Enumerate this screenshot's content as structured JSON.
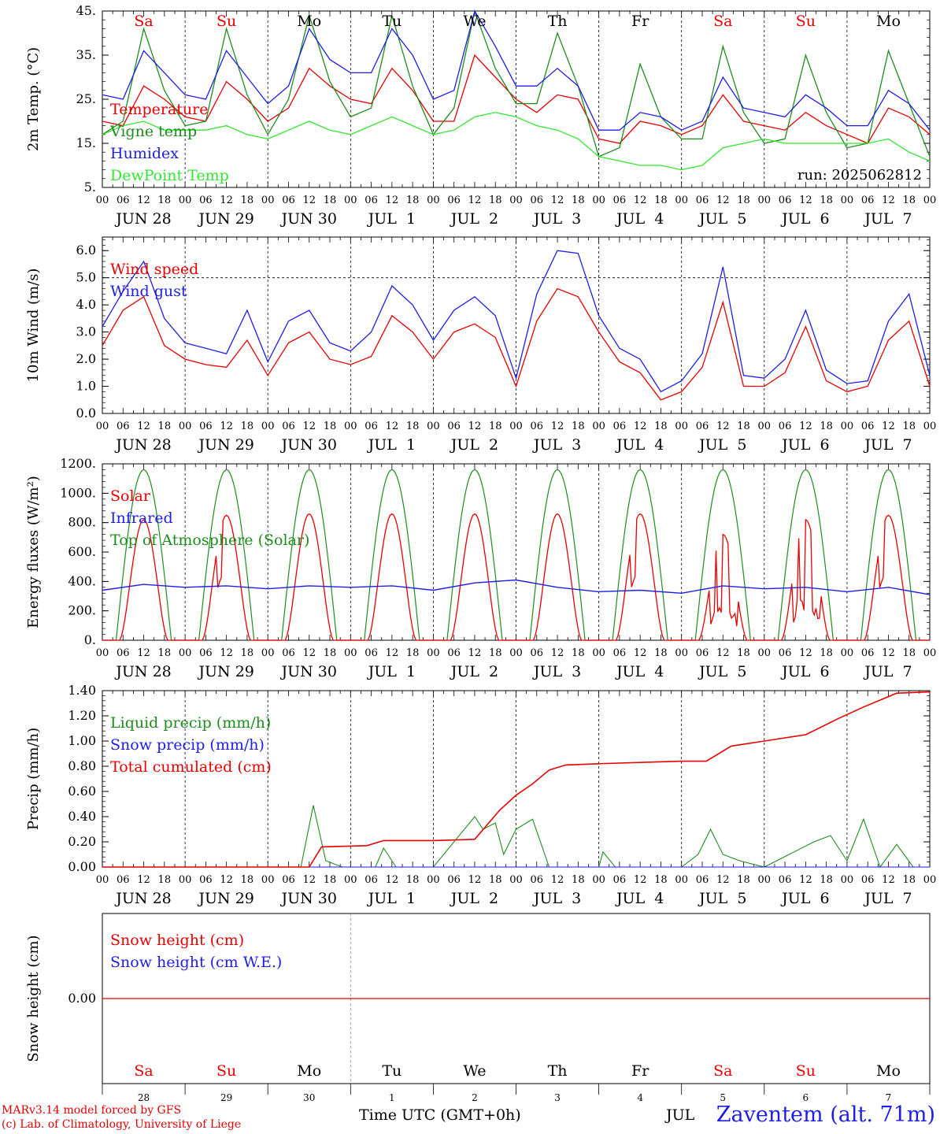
{
  "run_label": "run: 2025062812",
  "date_labels": [
    "JUN 28",
    "JUN 29",
    "JUN 30",
    "JUL  1",
    "JUL  2",
    "JUL  3",
    "JUL  4",
    "JUL  5",
    "JUL  6",
    "JUL  7"
  ],
  "weekdays": [
    "Sa",
    "Su",
    "Mo",
    "Tu",
    "We",
    "Th",
    "Fr",
    "Sa",
    "Su",
    "Mo"
  ],
  "weekday_colors": [
    "#e60000",
    "#e60000",
    "#000000",
    "#000000",
    "#000000",
    "#000000",
    "#000000",
    "#e60000",
    "#e60000",
    "#000000"
  ],
  "hour_labels": [
    "00",
    "06",
    "12",
    "18"
  ],
  "hour_label_end": "00",
  "day_numbers": [
    "28",
    "29",
    "30",
    "1",
    "2",
    "3",
    "4",
    "5",
    "6",
    "7"
  ],
  "footer": {
    "credit_line1": "MARv3.14 model forced by GFS",
    "credit_line2": "(c) Lab. of Climatology, University of Liege",
    "x_title": "Time UTC (GMT+0h)",
    "jul_label": "JUL",
    "station": "Zaventem (alt. 71m)"
  },
  "colors": {
    "red": "#e60000",
    "green": "#1e8c1e",
    "blue": "#1e1ee6",
    "lightgreen": "#32e632",
    "black": "#000000"
  },
  "chart_data": [
    {
      "type": "line",
      "ylabel": "2m Temp. (°C)",
      "ylim": [
        5,
        45
      ],
      "yticks": [
        "5.",
        "15.",
        "25.",
        "35.",
        "45."
      ],
      "x_unit": "days from 2025-06-28 00 UTC",
      "xlim": [
        0,
        10
      ],
      "legend_placement": "left",
      "series": [
        {
          "name": "Temperature",
          "color": "red",
          "x": [
            0,
            0.25,
            0.5,
            0.75,
            1,
            1.25,
            1.5,
            1.75,
            2,
            2.25,
            2.5,
            2.75,
            3,
            3.25,
            3.5,
            3.75,
            4,
            4.25,
            4.5,
            4.75,
            5,
            5.25,
            5.5,
            5.75,
            6,
            6.25,
            6.5,
            6.75,
            7,
            7.25,
            7.5,
            7.75,
            8,
            8.25,
            8.5,
            8.75,
            9,
            9.25,
            9.5,
            9.75,
            10
          ],
          "values": [
            20,
            19,
            28,
            25,
            21,
            20,
            29,
            25,
            20,
            23,
            32,
            28,
            25,
            24,
            32,
            27,
            20,
            20,
            35,
            30,
            25,
            22,
            26,
            25,
            16,
            15,
            20,
            19,
            17,
            19,
            26,
            20,
            19,
            18,
            22,
            19,
            17,
            15,
            23,
            21,
            17
          ]
        },
        {
          "name": "Vigne temp",
          "color": "green",
          "x": [
            0,
            0.25,
            0.5,
            0.75,
            1,
            1.25,
            1.5,
            1.75,
            2,
            2.25,
            2.5,
            2.75,
            3,
            3.25,
            3.5,
            3.75,
            4,
            4.25,
            4.5,
            4.75,
            5,
            5.25,
            5.5,
            5.75,
            6,
            6.25,
            6.5,
            6.75,
            7,
            7.25,
            7.5,
            7.75,
            8,
            8.25,
            8.5,
            8.75,
            9,
            9.25,
            9.5,
            9.75,
            10
          ],
          "values": [
            17,
            20,
            41,
            27,
            19,
            20,
            41,
            26,
            17,
            25,
            44,
            29,
            21,
            23,
            44,
            28,
            17,
            23,
            45,
            32,
            24,
            24,
            40,
            28,
            12,
            14,
            33,
            21,
            16,
            16,
            37,
            22,
            15,
            16,
            35,
            22,
            14,
            15,
            36,
            24,
            12
          ]
        },
        {
          "name": "Humidex",
          "color": "blue",
          "x": [
            0,
            0.25,
            0.5,
            0.75,
            1,
            1.25,
            1.5,
            1.75,
            2,
            2.25,
            2.5,
            2.75,
            3,
            3.25,
            3.5,
            3.75,
            4,
            4.25,
            4.5,
            4.75,
            5,
            5.25,
            5.5,
            5.75,
            6,
            6.25,
            6.5,
            6.75,
            7,
            7.25,
            7.5,
            7.75,
            8,
            8.25,
            8.5,
            8.75,
            9,
            9.25,
            9.5,
            9.75,
            10
          ],
          "values": [
            26,
            25,
            36,
            31,
            26,
            25,
            36,
            30,
            24,
            28,
            41,
            34,
            31,
            31,
            41,
            35,
            25,
            27,
            45,
            37,
            28,
            28,
            32,
            28,
            18,
            18,
            22,
            21,
            18,
            20,
            30,
            23,
            22,
            21,
            26,
            23,
            19,
            19,
            27,
            24,
            18
          ]
        },
        {
          "name": "DewPoint Temp",
          "color": "lightgreen",
          "x": [
            0,
            0.25,
            0.5,
            0.75,
            1,
            1.25,
            1.5,
            1.75,
            2,
            2.25,
            2.5,
            2.75,
            3,
            3.25,
            3.5,
            3.75,
            4,
            4.25,
            4.5,
            4.75,
            5,
            5.25,
            5.5,
            5.75,
            6,
            6.25,
            6.5,
            6.75,
            7,
            7.25,
            7.5,
            7.75,
            8,
            8.25,
            8.5,
            8.75,
            9,
            9.25,
            9.5,
            9.75,
            10
          ],
          "values": [
            17,
            19,
            20,
            18,
            18,
            18,
            19,
            17,
            16,
            18,
            20,
            18,
            17,
            19,
            21,
            19,
            17,
            18,
            21,
            22,
            21,
            19,
            18,
            16,
            12,
            11,
            10,
            10,
            9,
            10,
            14,
            15,
            16,
            15,
            15,
            15,
            15,
            15,
            16,
            13,
            11
          ]
        }
      ]
    },
    {
      "type": "line",
      "ylabel": "10m Wind (m/s)",
      "ylim": [
        0,
        6.5
      ],
      "yticks": [
        "0.0",
        "1.0",
        "2.0",
        "3.0",
        "4.0",
        "5.0",
        "6.0"
      ],
      "reference_line": 5.0,
      "x_unit": "days from 2025-06-28 00 UTC",
      "xlim": [
        0,
        10
      ],
      "series": [
        {
          "name": "Wind speed",
          "color": "red",
          "x": [
            0,
            0.25,
            0.5,
            0.75,
            1,
            1.25,
            1.5,
            1.75,
            2,
            2.25,
            2.5,
            2.75,
            3,
            3.25,
            3.5,
            3.75,
            4,
            4.25,
            4.5,
            4.75,
            5,
            5.25,
            5.5,
            5.75,
            6,
            6.25,
            6.5,
            6.75,
            7,
            7.25,
            7.5,
            7.75,
            8,
            8.25,
            8.5,
            8.75,
            9,
            9.25,
            9.5,
            9.75,
            10
          ],
          "values": [
            2.5,
            3.8,
            4.3,
            2.5,
            2.0,
            1.8,
            1.7,
            2.7,
            1.4,
            2.6,
            3.0,
            2.0,
            1.8,
            2.1,
            3.6,
            3.0,
            2.0,
            3.0,
            3.3,
            2.8,
            1.0,
            3.4,
            4.6,
            4.3,
            3.0,
            1.9,
            1.5,
            0.5,
            0.8,
            1.7,
            4.1,
            1.0,
            1.0,
            1.5,
            3.2,
            1.2,
            0.8,
            1.0,
            2.7,
            3.4,
            1.0
          ]
        },
        {
          "name": "Wind gust",
          "color": "blue",
          "x": [
            0,
            0.25,
            0.5,
            0.75,
            1,
            1.25,
            1.5,
            1.75,
            2,
            2.25,
            2.5,
            2.75,
            3,
            3.25,
            3.5,
            3.75,
            4,
            4.25,
            4.5,
            4.75,
            5,
            5.25,
            5.5,
            5.75,
            6,
            6.25,
            6.5,
            6.75,
            7,
            7.25,
            7.5,
            7.75,
            8,
            8.25,
            8.5,
            8.75,
            9,
            9.25,
            9.5,
            9.75,
            10
          ],
          "values": [
            3.2,
            4.5,
            5.6,
            3.5,
            2.6,
            2.4,
            2.2,
            3.8,
            1.9,
            3.4,
            3.8,
            2.6,
            2.3,
            3.0,
            4.7,
            4.0,
            2.7,
            3.8,
            4.3,
            3.6,
            1.3,
            4.4,
            6.0,
            5.9,
            3.6,
            2.4,
            2.0,
            0.8,
            1.2,
            2.2,
            5.4,
            1.4,
            1.3,
            2.0,
            3.8,
            1.6,
            1.1,
            1.2,
            3.4,
            4.4,
            1.4
          ]
        }
      ]
    },
    {
      "type": "line",
      "ylabel": "Energy fluxes (W/m²)",
      "ylim": [
        0,
        1200
      ],
      "yticks": [
        "0.",
        "200.",
        "400.",
        "600.",
        "800.",
        "1000.",
        "1200."
      ],
      "x_unit": "days from 2025-06-28 00 UTC",
      "xlim": [
        0,
        10
      ],
      "series": [
        {
          "name": "Solar",
          "color": "red",
          "daily_peak": [
            820,
            850,
            860,
            860,
            860,
            860,
            860,
            720,
            820,
            850
          ],
          "daily_dips": [
            0,
            1,
            0,
            0,
            0,
            0,
            1,
            2,
            2,
            1
          ]
        },
        {
          "name": "Infrared",
          "color": "blue",
          "x": [
            0,
            0.5,
            1,
            1.5,
            2,
            2.5,
            3,
            3.5,
            4,
            4.5,
            5,
            5.5,
            6,
            6.5,
            7,
            7.5,
            8,
            8.5,
            9,
            9.5,
            10
          ],
          "values": [
            340,
            380,
            360,
            370,
            350,
            370,
            360,
            370,
            340,
            390,
            410,
            360,
            330,
            340,
            320,
            370,
            350,
            360,
            330,
            360,
            310
          ]
        },
        {
          "name": "Top of Atmosphere (Solar)",
          "color": "green",
          "daily_peak": [
            1160,
            1160,
            1160,
            1160,
            1160,
            1160,
            1160,
            1160,
            1160,
            1160
          ]
        }
      ]
    },
    {
      "type": "line",
      "ylabel": "Precip (mm/h)",
      "ylim": [
        0,
        1.4
      ],
      "yticks": [
        "0.00",
        "0.20",
        "0.40",
        "0.60",
        "0.80",
        "1.00",
        "1.20",
        "1.40"
      ],
      "x_unit": "days from 2025-06-28 00 UTC",
      "xlim": [
        0,
        10
      ],
      "series": [
        {
          "name": "Liquid precip (mm/h)",
          "color": "green",
          "x": [
            0,
            2.4,
            2.55,
            2.7,
            2.9,
            3.3,
            3.4,
            3.55,
            4.0,
            4.5,
            4.6,
            4.75,
            4.85,
            5.0,
            5.2,
            5.4,
            5.6,
            6.0,
            6.05,
            6.2,
            7.0,
            7.2,
            7.35,
            7.5,
            7.7,
            8.0,
            8.3,
            8.6,
            8.8,
            9.0,
            9.2,
            9.4,
            9.6,
            9.8,
            10
          ],
          "values": [
            0,
            0,
            0.49,
            0.05,
            0,
            0,
            0.15,
            0,
            0,
            0.4,
            0.3,
            0.35,
            0.1,
            0.3,
            0.38,
            0,
            0,
            0,
            0.12,
            0,
            0,
            0.1,
            0.3,
            0.1,
            0.05,
            0,
            0.1,
            0.2,
            0.25,
            0.05,
            0.38,
            0,
            0.18,
            0,
            0
          ]
        },
        {
          "name": "Snow precip (mm/h)",
          "color": "blue",
          "x": [
            0,
            10
          ],
          "values": [
            0,
            0
          ]
        },
        {
          "name": "Total cumulated (cm)",
          "color": "red",
          "x": [
            0,
            2.5,
            2.65,
            3.2,
            3.4,
            4.0,
            4.5,
            4.8,
            5.0,
            5.2,
            5.4,
            5.6,
            6.0,
            7.0,
            7.3,
            7.6,
            8.0,
            8.5,
            8.9,
            9.2,
            9.6,
            10
          ],
          "values": [
            0,
            0,
            0.16,
            0.17,
            0.21,
            0.21,
            0.22,
            0.45,
            0.57,
            0.66,
            0.77,
            0.81,
            0.82,
            0.84,
            0.84,
            0.96,
            1.0,
            1.05,
            1.18,
            1.27,
            1.38,
            1.39
          ]
        }
      ]
    },
    {
      "type": "line",
      "ylabel": "Snow height (cm)",
      "ylim": [
        -1,
        1
      ],
      "yticks": [
        "0.00"
      ],
      "x_unit": "days from 2025-06-28 00 UTC",
      "xlim": [
        0,
        10
      ],
      "series": [
        {
          "name": "Snow height (cm)",
          "color": "red",
          "x": [
            0,
            10
          ],
          "values": [
            0,
            0
          ]
        },
        {
          "name": "Snow height (cm W.E.)",
          "color": "blue",
          "x": [],
          "values": []
        }
      ]
    }
  ]
}
